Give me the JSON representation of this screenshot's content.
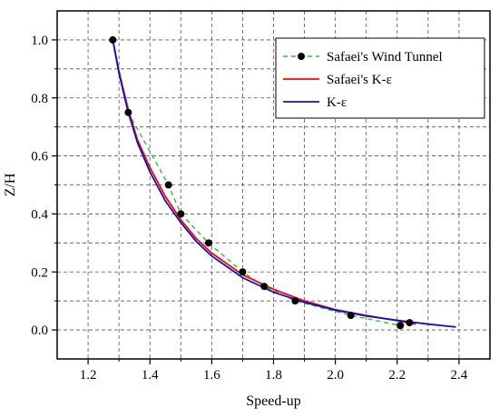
{
  "chart_data": {
    "type": "line",
    "xlabel": "Speed-up",
    "ylabel": "Z/H",
    "xlim": [
      1.1,
      2.5
    ],
    "ylim": [
      -0.1,
      1.1
    ],
    "x_ticks": [
      1.2,
      1.4,
      1.6,
      1.8,
      2.0,
      2.2,
      2.4
    ],
    "y_ticks": [
      0.0,
      0.2,
      0.4,
      0.6,
      0.8,
      1.0
    ],
    "x_tick_labels": [
      "1.2",
      "1.4",
      "1.6",
      "1.8",
      "2.0",
      "2.2",
      "2.4"
    ],
    "y_tick_labels": [
      "0.0",
      "0.2",
      "0.4",
      "0.6",
      "0.8",
      "1.0"
    ],
    "grid": true,
    "legend_position": "top-right",
    "series": [
      {
        "name": "Safaei's Wind Tunnel",
        "style": "dashed-with-markers",
        "color": "#22cc22",
        "marker_color": "#000000",
        "x": [
          1.28,
          1.33,
          1.46,
          1.5,
          1.59,
          1.7,
          1.77,
          1.87,
          2.05,
          2.21,
          2.24
        ],
        "y": [
          1.0,
          0.75,
          0.5,
          0.4,
          0.3,
          0.2,
          0.15,
          0.1,
          0.05,
          0.015,
          0.025
        ]
      },
      {
        "name": "Safaei's K-ε",
        "style": "solid",
        "color": "#ff0000",
        "x": [
          1.28,
          1.3,
          1.33,
          1.36,
          1.4,
          1.45,
          1.5,
          1.55,
          1.6,
          1.7,
          1.8,
          1.9,
          2.0,
          2.1,
          2.2,
          2.26
        ],
        "y": [
          1.0,
          0.89,
          0.76,
          0.655,
          0.56,
          0.46,
          0.38,
          0.315,
          0.265,
          0.19,
          0.14,
          0.1,
          0.07,
          0.05,
          0.032,
          0.02
        ]
      },
      {
        "name": "K-ε",
        "style": "solid",
        "color": "#1010cc",
        "x": [
          1.28,
          1.3,
          1.33,
          1.36,
          1.4,
          1.45,
          1.5,
          1.55,
          1.6,
          1.7,
          1.8,
          1.9,
          2.0,
          2.1,
          2.2,
          2.3,
          2.39
        ],
        "y": [
          1.0,
          0.885,
          0.75,
          0.645,
          0.545,
          0.445,
          0.37,
          0.305,
          0.255,
          0.18,
          0.13,
          0.095,
          0.068,
          0.048,
          0.033,
          0.02,
          0.01
        ]
      }
    ]
  }
}
